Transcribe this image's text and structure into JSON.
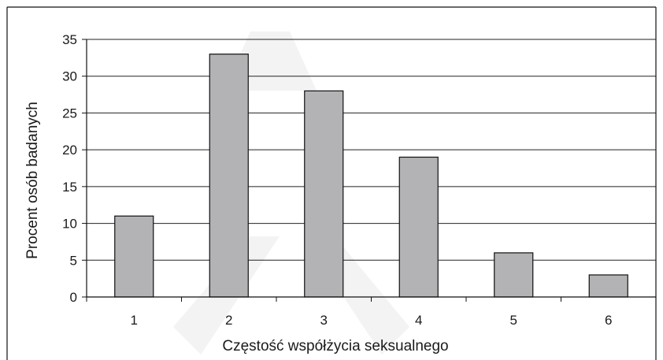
{
  "chart_data": {
    "type": "bar",
    "title": "",
    "xlabel": "Częstość współżycia seksualnego",
    "ylabel": "Procent osób badanych",
    "categories": [
      "1",
      "2",
      "3",
      "4",
      "5",
      "6"
    ],
    "values": [
      11,
      33,
      28,
      19,
      6,
      3
    ],
    "ylim": [
      0,
      35
    ],
    "yticks": [
      "0",
      "5",
      "10",
      "15",
      "20",
      "25",
      "30",
      "35"
    ],
    "grid": true,
    "legend": "none",
    "colors": {
      "bar_fill": "#b3b3b5",
      "bar_stroke": "#111111",
      "grid": "#222222",
      "axis": "#111111",
      "watermark": "#f1f1f1"
    }
  }
}
